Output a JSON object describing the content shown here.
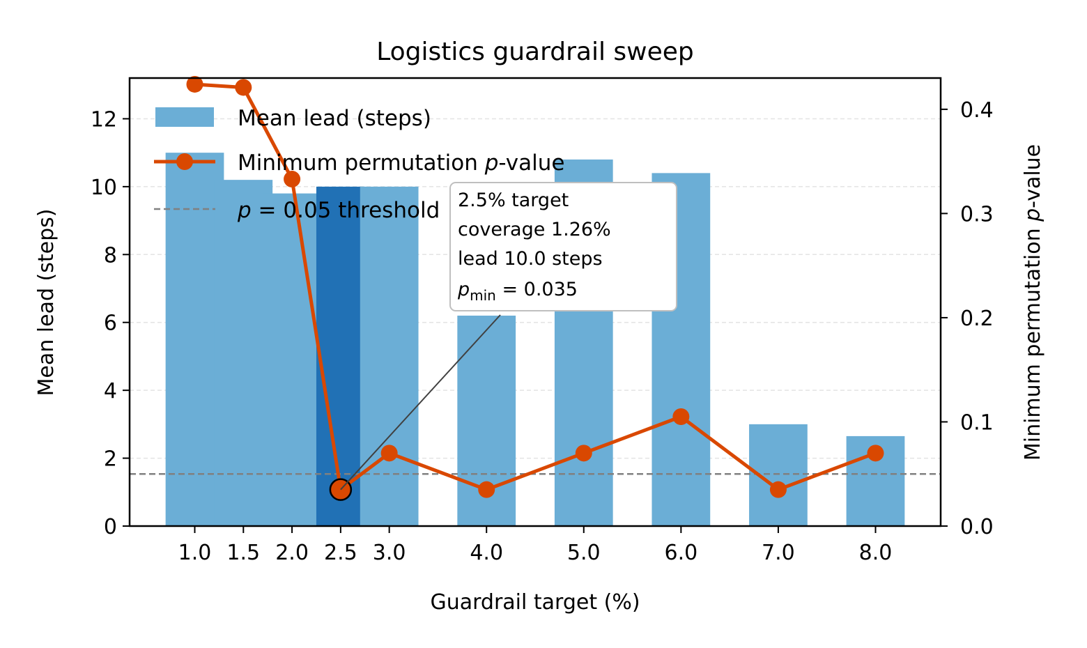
{
  "chart_data": {
    "type": "bar",
    "title": "Logistics guardrail sweep",
    "xlabel": "Guardrail target (%)",
    "ylabel": "Mean lead (steps)",
    "y2label_prefix": "Minimum permutation ",
    "y2label_italic": "p",
    "y2label_suffix": "-value",
    "x": [
      1.0,
      1.5,
      2.0,
      2.5,
      3.0,
      4.0,
      5.0,
      6.0,
      7.0,
      8.0
    ],
    "x_tick_labels": [
      "1.0",
      "1.5",
      "2.0",
      "2.5",
      "3.0",
      "4.0",
      "5.0",
      "6.0",
      "7.0",
      "8.0"
    ],
    "xlim": [
      0.33,
      8.67
    ],
    "ylim": [
      0,
      13.2
    ],
    "y_ticks": [
      0,
      2,
      4,
      6,
      8,
      10,
      12
    ],
    "y2lim": [
      0,
      0.43
    ],
    "y2_ticks": [
      0.0,
      0.1,
      0.2,
      0.3,
      0.4
    ],
    "y2_tick_labels": [
      "0.0",
      "0.1",
      "0.2",
      "0.3",
      "0.4"
    ],
    "grid": "horizontal dashed",
    "series": [
      {
        "name": "Mean lead (steps)",
        "kind": "bar",
        "axis": "left",
        "values": [
          11.0,
          10.2,
          9.8,
          10.0,
          10.0,
          6.2,
          10.8,
          10.4,
          3.0,
          2.65
        ],
        "color": "#6baed6",
        "highlight_index": 3,
        "highlight_color": "#2171b5"
      },
      {
        "name_prefix": "Minimum permutation ",
        "name_italic": "p",
        "name_suffix": "-value",
        "kind": "line",
        "axis": "right",
        "values": [
          0.424,
          0.421,
          0.333,
          0.035,
          0.07,
          0.035,
          0.07,
          0.105,
          0.035,
          0.07
        ],
        "color": "#d94801"
      }
    ],
    "threshold": {
      "label_italic": "p",
      "label_rest": " = 0.05 threshold",
      "value": 0.05,
      "axis": "right",
      "color": "#808080"
    },
    "legend_position": "upper-left",
    "annotation": {
      "lines": [
        "2.5% target",
        "coverage 1.26%",
        "lead 10.0 steps"
      ],
      "pmin_label": "p",
      "pmin_sub": "min",
      "pmin_value": " = 0.035",
      "point_index": 3
    }
  }
}
